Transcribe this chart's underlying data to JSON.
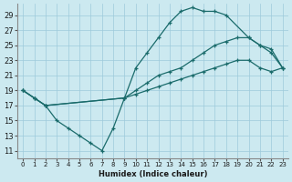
{
  "xlabel": "Humidex (Indice chaleur)",
  "bg_color": "#cce9f0",
  "grid_color": "#9dcadb",
  "line_color": "#1a6b6b",
  "xlim": [
    -0.5,
    23.5
  ],
  "ylim": [
    10,
    30.5
  ],
  "xticks": [
    0,
    1,
    2,
    3,
    4,
    5,
    6,
    7,
    8,
    9,
    10,
    11,
    12,
    13,
    14,
    15,
    16,
    17,
    18,
    19,
    20,
    21,
    22,
    23
  ],
  "yticks": [
    11,
    13,
    15,
    17,
    19,
    21,
    23,
    25,
    27,
    29
  ],
  "line1_x": [
    0,
    1,
    2,
    3,
    4,
    5,
    6,
    7,
    8,
    9,
    10,
    11,
    12,
    13,
    14,
    15,
    16,
    17,
    18,
    20,
    21,
    22,
    23
  ],
  "line1_y": [
    19,
    18,
    17,
    15,
    14,
    13,
    12,
    11,
    14,
    18,
    22,
    24,
    26,
    28,
    29.5,
    30,
    29.5,
    29.5,
    29,
    26,
    25,
    24,
    22
  ],
  "line2_x": [
    0,
    1,
    2,
    9,
    10,
    11,
    12,
    13,
    14,
    15,
    16,
    17,
    18,
    19,
    20,
    21,
    22,
    23
  ],
  "line2_y": [
    19,
    18,
    17,
    18,
    19,
    20,
    21,
    21.5,
    22,
    23,
    24,
    25,
    25.5,
    26,
    26,
    25,
    24.5,
    22
  ],
  "line3_x": [
    0,
    1,
    2,
    9,
    10,
    11,
    12,
    13,
    14,
    15,
    16,
    17,
    18,
    19,
    20,
    21,
    22,
    23
  ],
  "line3_y": [
    19,
    18,
    17,
    18,
    18.5,
    19,
    19.5,
    20,
    20.5,
    21,
    21.5,
    22,
    22.5,
    23,
    23,
    22,
    21.5,
    22
  ]
}
